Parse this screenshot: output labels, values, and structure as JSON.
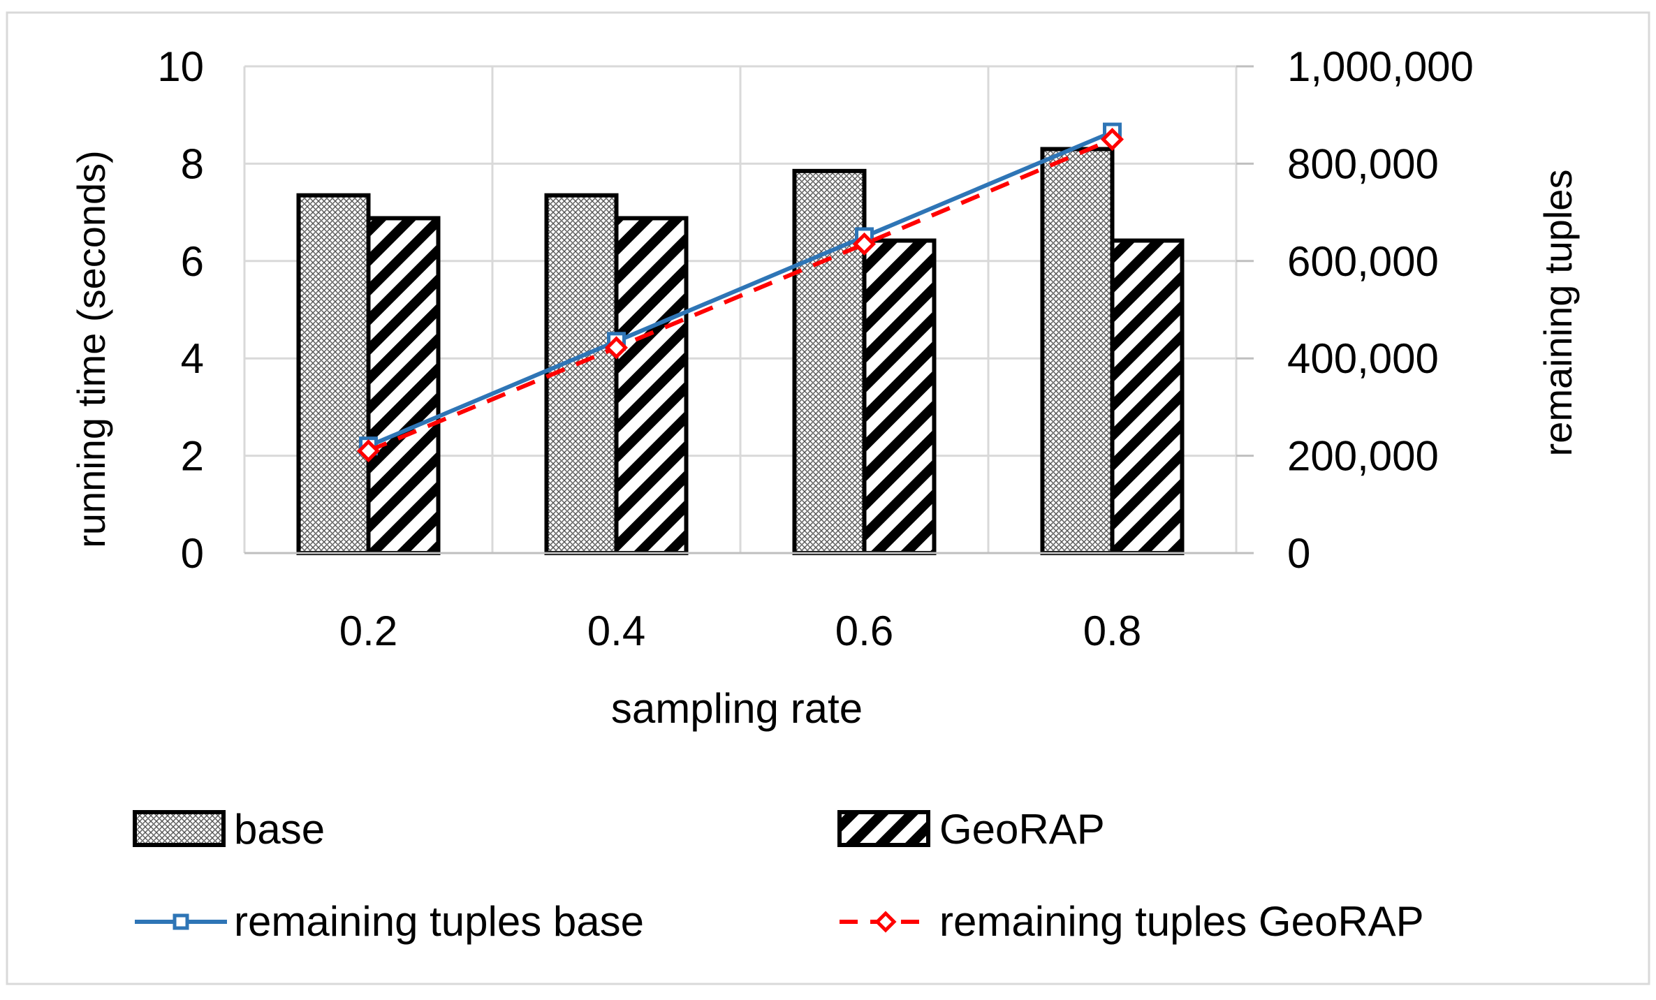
{
  "chart_data": {
    "type": "bar",
    "categories": [
      "0.2",
      "0.4",
      "0.6",
      "0.8"
    ],
    "xlabel": "sampling rate",
    "ylabel": "running time (seconds)",
    "y2label": "remaining tuples",
    "ylim": [
      0,
      10
    ],
    "y2lim": [
      0,
      1000000
    ],
    "yticks": [
      "0",
      "2",
      "4",
      "6",
      "8",
      "10"
    ],
    "y2ticks": [
      "0",
      "200,000",
      "400,000",
      "600,000",
      "800,000",
      "1,000,000"
    ],
    "grid": true,
    "legend_position": "bottom",
    "bar_series": [
      {
        "name": "base",
        "values": [
          7.35,
          7.35,
          7.85,
          8.3
        ],
        "pattern": "crosshatch"
      },
      {
        "name": "GeoRAP",
        "values": [
          6.88,
          6.88,
          6.42,
          6.42
        ],
        "pattern": "diagonal"
      }
    ],
    "line_series": [
      {
        "name": "remaining tuples base",
        "values": [
          220000,
          435000,
          650000,
          865000
        ],
        "color": "#2e75b6",
        "marker": "square",
        "dash": "solid"
      },
      {
        "name": "remaining tuples GeoRAP",
        "values": [
          210000,
          422000,
          635000,
          850000
        ],
        "color": "#ff0000",
        "marker": "diamond",
        "dash": "dashed"
      }
    ]
  }
}
